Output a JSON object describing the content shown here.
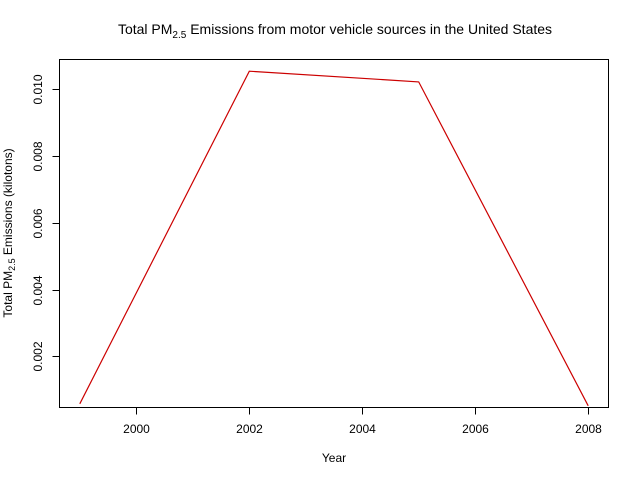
{
  "chart_data": {
    "type": "line",
    "title": {
      "prefix": "Total PM",
      "subscript": "2.5",
      "suffix": " Emissions from motor vehicle sources in the United States"
    },
    "xlabel": "Year",
    "ylabel": {
      "prefix": "Total PM",
      "subscript": "2.5",
      "suffix": " Emissions (kilotons)"
    },
    "x_ticks": [
      2000,
      2002,
      2004,
      2006,
      2008
    ],
    "x_tick_labels": [
      "2000",
      "2002",
      "2004",
      "2006",
      "2008"
    ],
    "y_ticks": [
      0.002,
      0.004,
      0.006,
      0.008,
      0.01
    ],
    "y_tick_labels": [
      "0.002",
      "0.004",
      "0.006",
      "0.008",
      "0.010"
    ],
    "xlim": [
      1998.64,
      2008.36
    ],
    "ylim": [
      0.00047,
      0.01089
    ],
    "grid": false,
    "line_color": "#cc0000",
    "series": [
      {
        "x": [
          1999,
          2002,
          2005,
          2008
        ],
        "y": [
          0.00058,
          0.01054,
          0.01022,
          0.00052
        ]
      }
    ]
  }
}
